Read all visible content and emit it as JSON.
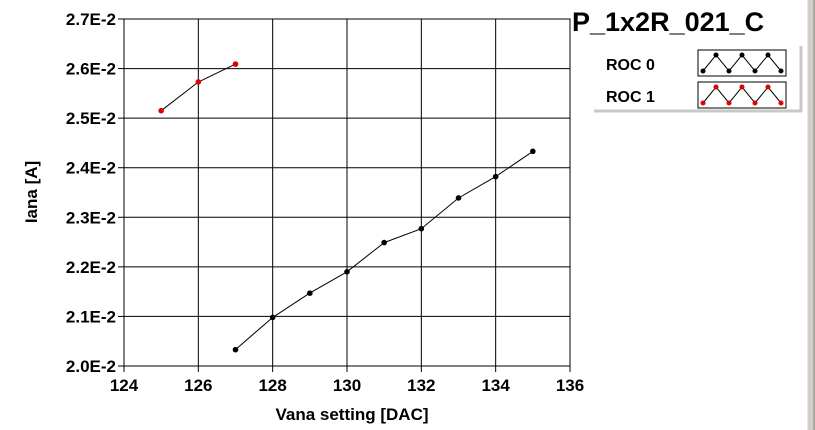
{
  "chart_data": {
    "type": "line",
    "title": "P_1x2R_021_C",
    "xlabel": "Vana setting [DAC]",
    "ylabel": "Iana [A]",
    "xlim": [
      124,
      136
    ],
    "ylim": [
      0.02,
      0.027
    ],
    "x_ticks": [
      124,
      126,
      128,
      130,
      132,
      134,
      136
    ],
    "x_tick_labels": [
      "124",
      "126",
      "128",
      "130",
      "132",
      "134",
      "136"
    ],
    "y_ticks": [
      0.02,
      0.021,
      0.022,
      0.023,
      0.024,
      0.025,
      0.026,
      0.027
    ],
    "y_tick_labels": [
      "2.0E-2",
      "2.1E-2",
      "2.2E-2",
      "2.3E-2",
      "2.4E-2",
      "2.5E-2",
      "2.6E-2",
      "2.7E-2"
    ],
    "grid": true,
    "legend_position": "top-right",
    "series": [
      {
        "name": "ROC 0",
        "color": "#000000",
        "line_color": "#000000",
        "x": [
          127,
          128,
          129,
          130,
          131,
          132,
          133,
          134,
          135
        ],
        "y": [
          0.02033,
          0.02098,
          0.02147,
          0.0219,
          0.02249,
          0.02277,
          0.02339,
          0.02382,
          0.02433
        ]
      },
      {
        "name": "ROC 1",
        "color": "#e00000",
        "line_color": "#000000",
        "x": [
          125,
          126,
          127
        ],
        "y": [
          0.02515,
          0.02573,
          0.02609
        ]
      }
    ]
  }
}
